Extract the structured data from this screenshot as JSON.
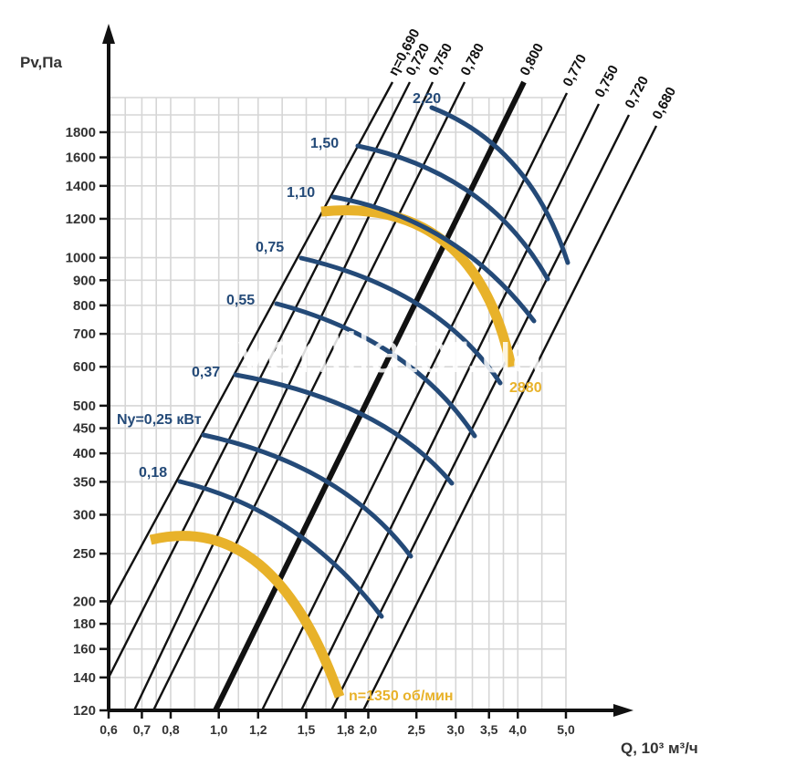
{
  "chart_data": {
    "type": "line",
    "title": "",
    "xlabel": "Q, 10³ м³/ч",
    "ylabel": "Pv,Па",
    "x_scale": "log",
    "y_scale": "log",
    "xlim": [
      0.6,
      5.0
    ],
    "ylim": [
      120,
      1800
    ],
    "grid": true,
    "x_ticks": [
      "0,6",
      "0,7",
      "0,8",
      "1,0",
      "1,2",
      "1,5",
      "1,8",
      "2,0",
      "2,5",
      "3,0",
      "3,5",
      "4,0",
      "5,0"
    ],
    "y_ticks": [
      "1800",
      "1600",
      "1400",
      "1200",
      "1000",
      "900",
      "800",
      "700",
      "600",
      "500",
      "450",
      "400",
      "350",
      "300",
      "250",
      "200",
      "180",
      "160",
      "140",
      "120"
    ],
    "efficiency_lines": {
      "prefix": "η=",
      "labels": [
        "0,690",
        "0,720",
        "0,750",
        "0,780",
        "0,800",
        "0,770",
        "0,750",
        "0,720",
        "0,680"
      ]
    },
    "power_curves": {
      "prefix": "Ny=",
      "unit": "кВт",
      "labels": [
        "0,18",
        "0,25",
        "0,37",
        "0,55",
        "0,75",
        "1,10",
        "1,50",
        "2,20"
      ]
    },
    "speed_curves": [
      {
        "label": "n=1350 об/мин",
        "points": [
          [
            0.7,
            270
          ],
          [
            0.95,
            265
          ],
          [
            1.3,
            225
          ],
          [
            1.6,
            180
          ],
          [
            1.85,
            127
          ]
        ]
      },
      {
        "label": "2880",
        "points": [
          [
            1.8,
            1250
          ],
          [
            2.5,
            1200
          ],
          [
            3.3,
            950
          ],
          [
            3.9,
            720
          ],
          [
            4.05,
            600
          ]
        ]
      }
    ],
    "watermark": "ventilator.ua",
    "colors": {
      "axis": "#111111",
      "grid": "#d6d6d6",
      "efficiency": "#111111",
      "power": "#244a78",
      "speed": "#e8b22a",
      "text": "#333333"
    }
  }
}
